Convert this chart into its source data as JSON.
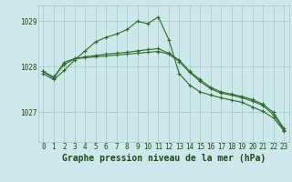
{
  "title": "Graphe pression niveau de la mer (hPa)",
  "xlabel_hours": [
    0,
    1,
    2,
    3,
    4,
    5,
    6,
    7,
    8,
    9,
    10,
    11,
    12,
    13,
    14,
    15,
    16,
    17,
    18,
    19,
    20,
    21,
    22,
    23
  ],
  "series": [
    [
      1027.85,
      1027.72,
      1027.92,
      1028.15,
      1028.35,
      1028.55,
      1028.65,
      1028.72,
      1028.82,
      1029.0,
      1028.95,
      1029.1,
      1028.6,
      1027.85,
      1027.6,
      1027.45,
      1027.38,
      1027.32,
      1027.27,
      1027.22,
      1027.12,
      1027.02,
      1026.88,
      1026.6
    ],
    [
      1027.9,
      1027.78,
      1028.05,
      1028.18,
      1028.22,
      1028.25,
      1028.28,
      1028.3,
      1028.32,
      1028.35,
      1028.38,
      1028.4,
      1028.3,
      1028.15,
      1027.9,
      1027.72,
      1027.55,
      1027.45,
      1027.4,
      1027.35,
      1027.28,
      1027.18,
      1027.0,
      1026.65
    ],
    [
      1027.9,
      1027.75,
      1028.1,
      1028.18,
      1028.2,
      1028.22,
      1028.24,
      1028.26,
      1028.28,
      1028.3,
      1028.32,
      1028.34,
      1028.28,
      1028.12,
      1027.88,
      1027.68,
      1027.52,
      1027.42,
      1027.38,
      1027.32,
      1027.25,
      1027.15,
      1026.95,
      1026.62
    ]
  ],
  "line_color": "#2d6a2d",
  "marker": "+",
  "markersize": 3,
  "markeredgewidth": 0.8,
  "linewidth": 0.8,
  "bg_color": "#cce8e8",
  "grid_color": "#9ec8c8",
  "axis_label_color": "#1a4a1a",
  "ylabel_ticks": [
    1027,
    1028,
    1029
  ],
  "ylim": [
    1026.35,
    1029.35
  ],
  "xlim": [
    -0.5,
    23.5
  ],
  "tick_fontsize": 5.5,
  "label_fontsize": 7.0,
  "figsize": [
    3.2,
    2.0
  ],
  "dpi": 100
}
